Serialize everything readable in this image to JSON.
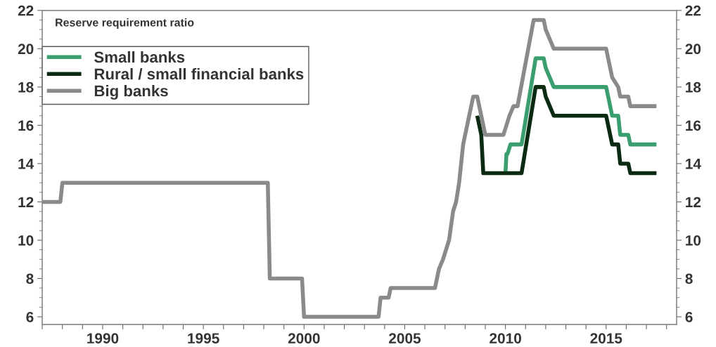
{
  "chart_data": {
    "type": "line",
    "title": "Reserve requirement ratio",
    "series": [
      {
        "name": "Small banks",
        "color": "#3a9e6e",
        "x": [
          2010.0,
          2010.05,
          2010.1,
          2010.25,
          2010.3,
          2010.8,
          2011.5,
          2011.9,
          2012.0,
          2012.2,
          2012.4,
          2015.0,
          2015.1,
          2015.3,
          2015.6,
          2015.7,
          2016.1,
          2016.2,
          2017.5
        ],
        "values": [
          13.5,
          14.5,
          14.5,
          15,
          15,
          15,
          19.5,
          19.5,
          19,
          18.5,
          18,
          18,
          17.5,
          16.5,
          16.5,
          15.5,
          15.5,
          15,
          15
        ]
      },
      {
        "name": "Rural / small financial banks",
        "color": "#0a2a12",
        "x": [
          2008.6,
          2008.7,
          2008.8,
          2008.9,
          2010.8,
          2011.5,
          2011.9,
          2012.0,
          2012.2,
          2012.4,
          2015.0,
          2015.1,
          2015.3,
          2015.6,
          2015.7,
          2016.1,
          2016.2,
          2017.5
        ],
        "values": [
          16.5,
          16,
          15.5,
          13.5,
          13.5,
          18,
          18,
          17.5,
          17,
          16.5,
          16.5,
          16,
          15,
          15,
          14,
          14,
          13.5,
          13.5
        ]
      },
      {
        "name": "Big banks",
        "color": "#8a8a8a",
        "x": [
          1987.0,
          1987.9,
          1988.0,
          1998.2,
          1998.3,
          1999.9,
          2000.0,
          2003.7,
          2003.8,
          2004.2,
          2004.3,
          2006.5,
          2006.7,
          2006.9,
          2007.2,
          2007.4,
          2007.55,
          2007.7,
          2007.9,
          2008.1,
          2008.4,
          2008.6,
          2008.8,
          2008.9,
          2009.0,
          2009.9,
          2010.2,
          2010.4,
          2010.6,
          2011.4,
          2011.9,
          2012.0,
          2012.2,
          2012.4,
          2015.0,
          2015.1,
          2015.3,
          2015.6,
          2015.7,
          2016.1,
          2016.2,
          2017.5
        ],
        "values": [
          12,
          12,
          13,
          13,
          8,
          8,
          6,
          6,
          7,
          7,
          7.5,
          7.5,
          8.5,
          9,
          10,
          11.5,
          12,
          13,
          15,
          16,
          17.5,
          17.5,
          16.5,
          16,
          15.5,
          15.5,
          16.5,
          17,
          17,
          21.5,
          21.5,
          21,
          20.5,
          20,
          20,
          19.5,
          18.5,
          18,
          17.5,
          17.5,
          17,
          17
        ]
      }
    ],
    "xlim": [
      1987,
      2018.5
    ],
    "xticks": [
      {
        "value": 1987,
        "label": null
      },
      {
        "value": 1988,
        "label": null
      },
      {
        "value": 1989,
        "label": null
      },
      1990,
      {
        "value": 1991,
        "label": null
      },
      {
        "value": 1992,
        "label": null
      },
      {
        "value": 1993,
        "label": null
      },
      {
        "value": 1994,
        "label": null
      },
      1995,
      {
        "value": 1996,
        "label": null
      },
      {
        "value": 1997,
        "label": null
      },
      {
        "value": 1998,
        "label": null
      },
      {
        "value": 1999,
        "label": null
      },
      2000,
      {
        "value": 2001,
        "label": null
      },
      {
        "value": 2002,
        "label": null
      },
      {
        "value": 2003,
        "label": null
      },
      {
        "value": 2004,
        "label": null
      },
      2005,
      {
        "value": 2006,
        "label": null
      },
      {
        "value": 2007,
        "label": null
      },
      {
        "value": 2008,
        "label": null
      },
      {
        "value": 2009,
        "label": null
      },
      2010,
      {
        "value": 2011,
        "label": null
      },
      {
        "value": 2012,
        "label": null
      },
      {
        "value": 2013,
        "label": null
      },
      {
        "value": 2014,
        "label": null
      },
      2015,
      {
        "value": 2016,
        "label": null
      },
      {
        "value": 2017,
        "label": null
      },
      {
        "value": 2018,
        "label": null
      }
    ],
    "ylim": [
      5.6,
      22
    ],
    "yticks": [
      6,
      8,
      10,
      12,
      14,
      16,
      18,
      20,
      22
    ],
    "y2lim": [
      5.6,
      22
    ],
    "y2ticks": [
      6,
      8,
      10,
      12,
      14,
      16,
      18,
      20,
      22
    ],
    "grid": false,
    "legend": "top left",
    "marker": "none",
    "line_style": "solid"
  }
}
